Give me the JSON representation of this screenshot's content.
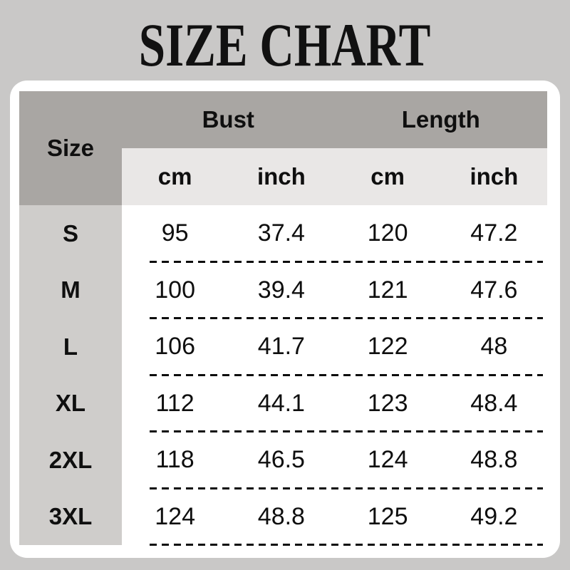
{
  "title": "SIZE CHART",
  "table": {
    "size_header": "Size",
    "groups": [
      "Bust",
      "Length"
    ],
    "units": [
      "cm",
      "inch",
      "cm",
      "inch"
    ],
    "rows": [
      [
        "S",
        "95",
        "37.4",
        "120",
        "47.2"
      ],
      [
        "M",
        "100",
        "39.4",
        "121",
        "47.6"
      ],
      [
        "L",
        "106",
        "41.7",
        "122",
        "48"
      ],
      [
        "XL",
        "112",
        "44.1",
        "123",
        "48.4"
      ],
      [
        "2XL",
        "118",
        "46.5",
        "124",
        "48.8"
      ],
      [
        "3XL",
        "124",
        "48.8",
        "125",
        "49.2"
      ]
    ]
  },
  "colors": {
    "page_background": "#c9c8c7",
    "card_background": "#ffffff",
    "header_dark_gray": "#a9a6a3",
    "subheader_light_gray": "#e9e7e6",
    "size_column_gray": "#cfcdcb",
    "text": "#0f0f0f",
    "dash": "#0d0d0d"
  },
  "chart_data": {
    "type": "table",
    "title": "SIZE CHART",
    "columns": [
      "Size",
      "Bust cm",
      "Bust inch",
      "Length cm",
      "Length inch"
    ],
    "rows": [
      [
        "S",
        95,
        37.4,
        120,
        47.2
      ],
      [
        "M",
        100,
        39.4,
        121,
        47.6
      ],
      [
        "L",
        106,
        41.7,
        122,
        48
      ],
      [
        "XL",
        112,
        44.1,
        123,
        48.4
      ],
      [
        "2XL",
        118,
        46.5,
        124,
        48.8
      ],
      [
        "3XL",
        124,
        48.8,
        125,
        49.2
      ]
    ]
  }
}
